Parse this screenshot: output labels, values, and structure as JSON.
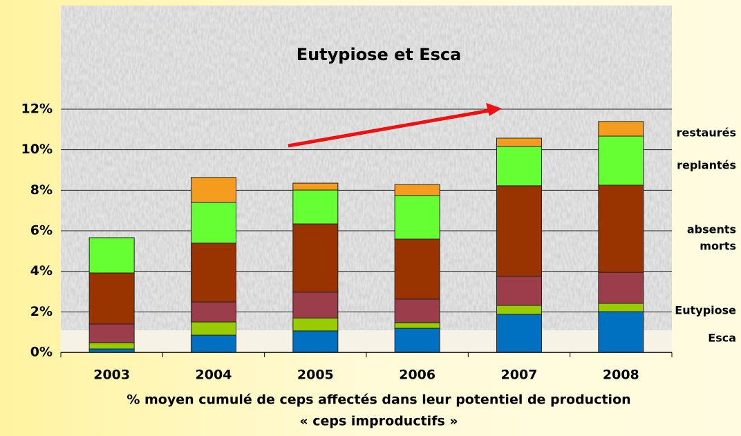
{
  "chart_data": {
    "type": "stacked_bar",
    "title": "Eutypiose et Esca",
    "caption": [
      "% moyen cumulé de ceps affectés dans leur potentiel de production",
      "« ceps improductifs »"
    ],
    "categories": [
      "2003",
      "2004",
      "2005",
      "2006",
      "2007",
      "2008"
    ],
    "series": [
      {
        "name": "Esca",
        "color": "#0070c0",
        "values": [
          0.17,
          0.85,
          1.06,
          1.19,
          1.88,
          2.01
        ]
      },
      {
        "name": "Eutypiose",
        "color": "#99cc00",
        "values": [
          0.31,
          0.65,
          0.64,
          0.28,
          0.44,
          0.41
        ]
      },
      {
        "name": "morts",
        "color": "#9b3d4a",
        "values": [
          0.92,
          0.99,
          1.27,
          1.16,
          1.43,
          1.53
        ]
      },
      {
        "name": "absents",
        "color": "#993300",
        "values": [
          2.52,
          2.9,
          3.37,
          2.96,
          4.47,
          4.3
        ]
      },
      {
        "name": "replantés",
        "color": "#66ff33",
        "values": [
          1.74,
          2.01,
          1.67,
          2.15,
          1.94,
          2.42
        ]
      },
      {
        "name": "restaurés",
        "color": "#f39c1d",
        "values": [
          0,
          1.23,
          0.34,
          0.54,
          0.41,
          0.72
        ]
      }
    ],
    "ylim": [
      0,
      12
    ],
    "yticks": [
      {
        "value": 0,
        "label": "0%"
      },
      {
        "value": 2,
        "label": "2%"
      },
      {
        "value": 4,
        "label": "4%"
      },
      {
        "value": 6,
        "label": "6%"
      },
      {
        "value": 8,
        "label": "8%"
      },
      {
        "value": 10,
        "label": "10%"
      },
      {
        "value": 12,
        "label": "12%"
      }
    ],
    "grid": true
  }
}
